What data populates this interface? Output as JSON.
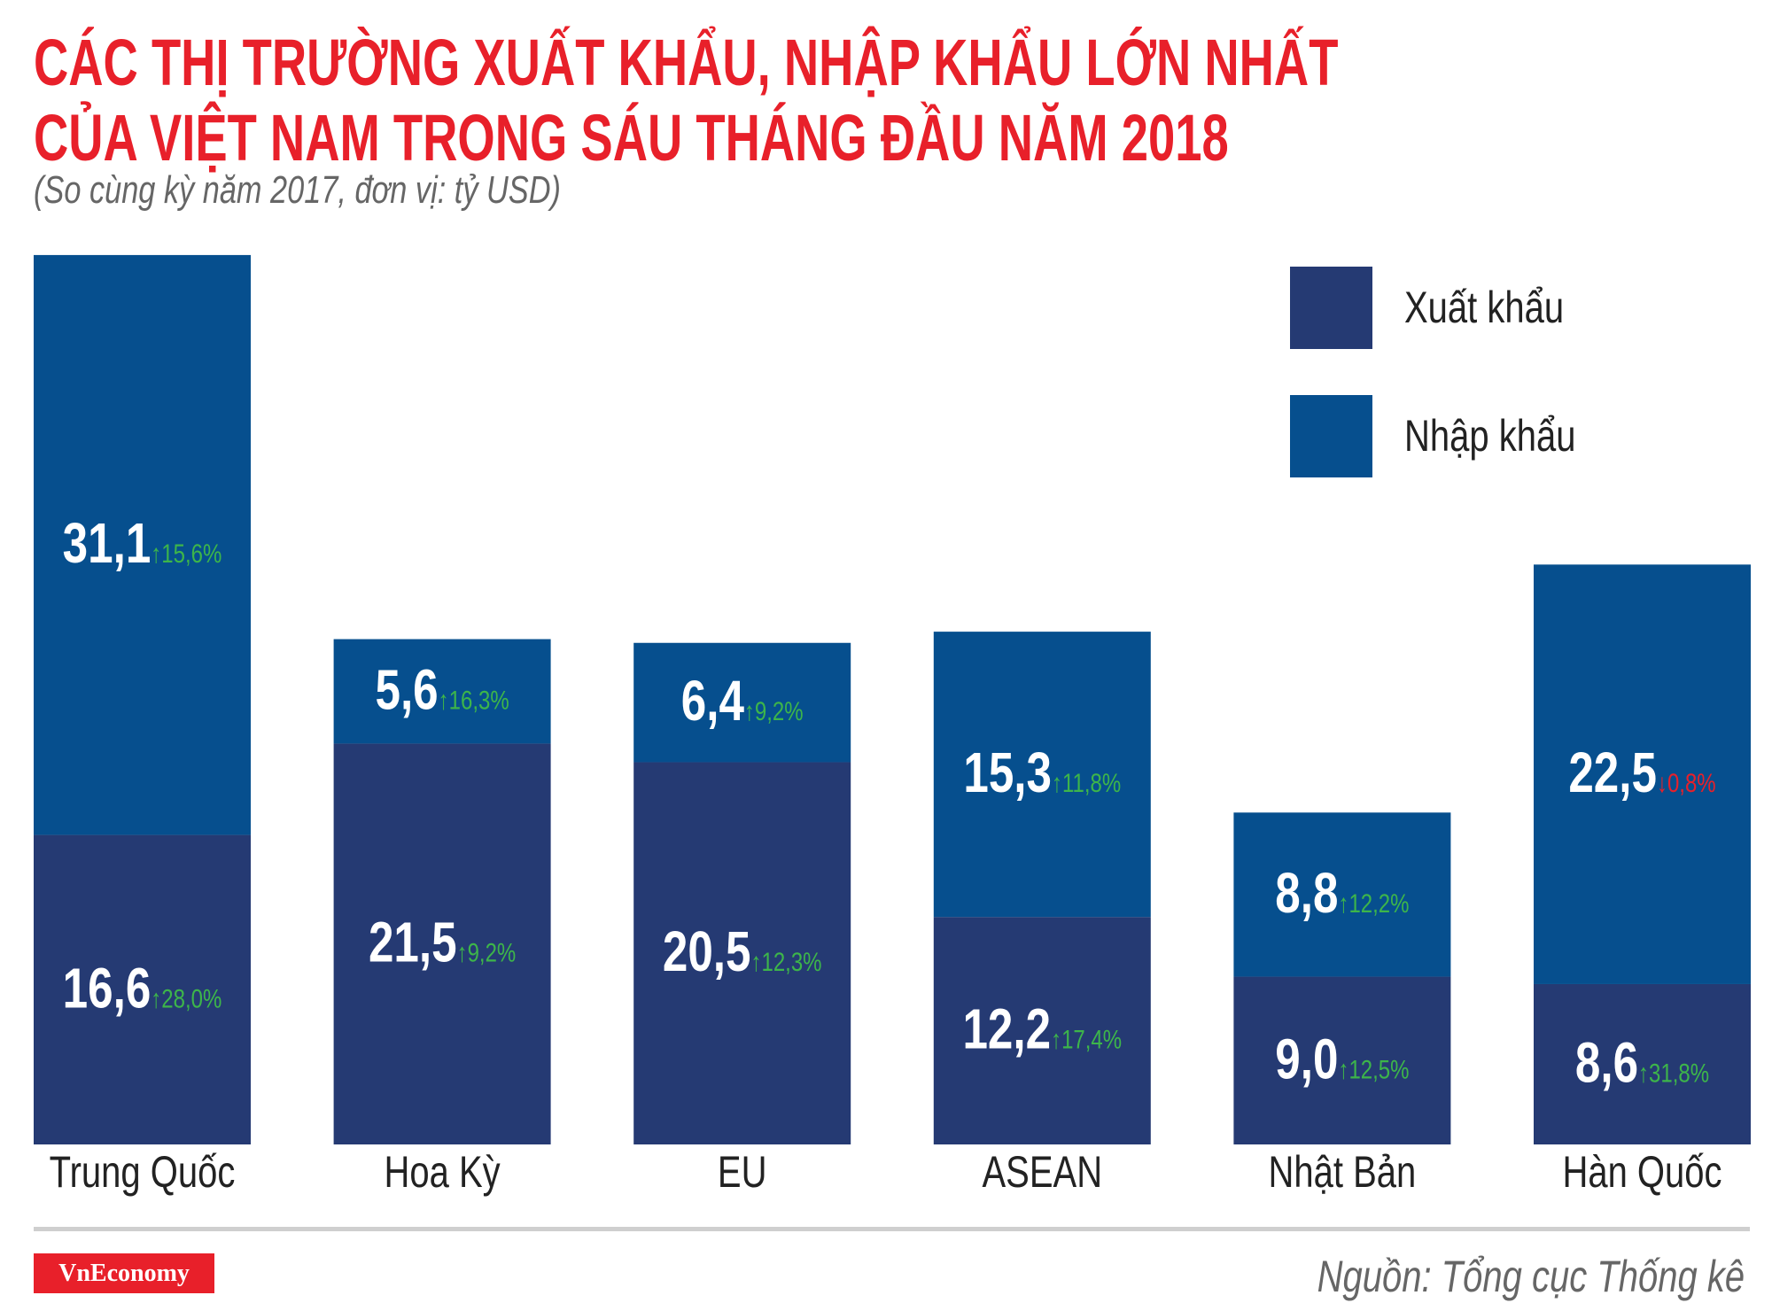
{
  "title_line1": "CÁC THỊ TRƯỜNG XUẤT KHẨU, NHẬP KHẨU LỚN NHẤT",
  "title_line2": "CỦA VIỆT NAM TRONG SÁU THÁNG ĐẦU NĂM 2018",
  "subtitle": "(So cùng kỳ năm 2017, đơn vị: tỷ USD)",
  "legend": [
    {
      "label": "Xuất khẩu",
      "color": "#253a73"
    },
    {
      "label": "Nhập khẩu",
      "color": "#064f8e"
    }
  ],
  "source": "Nguồn: Tổng cục Thống kê",
  "logo": "VnEconomy",
  "colors": {
    "up": "#3db54a",
    "down": "#e8202a",
    "title": "#e8202a"
  },
  "chart_data": {
    "type": "bar",
    "stacked": true,
    "title": "CÁC THỊ TRƯỜNG XUẤT KHẨU, NHẬP KHẨU LỚN NHẤT CỦA VIỆT NAM TRONG SÁU THÁNG ĐẦU NĂM 2018",
    "subtitle": "(So cùng kỳ năm 2017, đơn vị: tỷ USD)",
    "categories": [
      "Trung Quốc",
      "Hoa Kỳ",
      "EU",
      "ASEAN",
      "Nhật Bản",
      "Hàn Quốc"
    ],
    "series": [
      {
        "name": "Xuất khẩu",
        "values": [
          16.6,
          21.5,
          20.5,
          12.2,
          9.0,
          8.6
        ],
        "labels": [
          "16,6",
          "21,5",
          "20,5",
          "12,2",
          "9,0",
          "8,6"
        ],
        "changes": [
          "28,0%",
          "9,2%",
          "12,3%",
          "17,4%",
          "12,5%",
          "31,8%"
        ],
        "directions": [
          "up",
          "up",
          "up",
          "up",
          "up",
          "up"
        ]
      },
      {
        "name": "Nhập khẩu",
        "values": [
          31.1,
          5.6,
          6.4,
          15.3,
          8.8,
          22.5
        ],
        "labels": [
          "31,1",
          "5,6",
          "6,4",
          "15,3",
          "8,8",
          "22,5"
        ],
        "changes": [
          "15,6%",
          "16,3%",
          "9,2%",
          "11,8%",
          "12,2%",
          "0,8%"
        ],
        "directions": [
          "up",
          "up",
          "up",
          "up",
          "up",
          "down"
        ]
      }
    ],
    "legend_position": "top-right",
    "grid": false,
    "axes_visible": false
  }
}
